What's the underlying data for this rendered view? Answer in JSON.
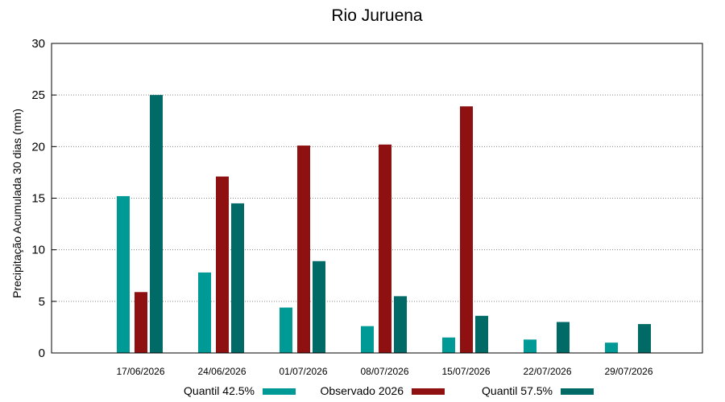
{
  "chart_data": {
    "type": "bar",
    "title": "Rio Juruena",
    "xlabel": "",
    "ylabel": "Precipitação Acumulada 30 dias (mm)",
    "ylim": [
      0,
      30
    ],
    "yticks": [
      0,
      5,
      10,
      15,
      20,
      25,
      30
    ],
    "grid": true,
    "legend_position": "bottom",
    "categories": [
      "17/06/2026",
      "24/06/2026",
      "01/07/2026",
      "08/07/2026",
      "15/07/2026",
      "22/07/2026",
      "29/07/2026"
    ],
    "series": [
      {
        "name": "Quantil 42.5%",
        "color": "#009a96",
        "values": [
          15.2,
          7.8,
          4.4,
          2.6,
          1.5,
          1.3,
          1.0
        ]
      },
      {
        "name": "Observado 2026",
        "color": "#8e1010",
        "values": [
          5.9,
          17.1,
          20.1,
          20.2,
          23.9,
          null,
          null
        ]
      },
      {
        "name": "Quantil 57.5%",
        "color": "#006a66",
        "values": [
          25.0,
          14.5,
          8.9,
          5.5,
          3.6,
          3.0,
          2.8
        ]
      }
    ]
  }
}
